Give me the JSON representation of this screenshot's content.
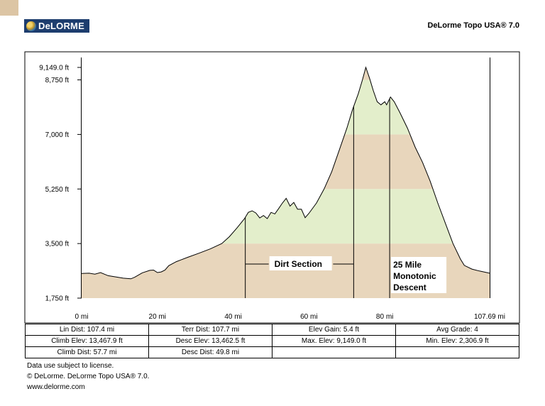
{
  "header": {
    "logo_text": "DeLORME",
    "app_title": "DeLorme Topo USA® 7.0"
  },
  "colors": {
    "corner": "#dcc5a4",
    "band_tan": "#e8d6bc",
    "band_green": "#e3eecb",
    "logo_bg": "#1d3d6e"
  },
  "chart_data": {
    "type": "area",
    "xlim": [
      0,
      107.69
    ],
    "ylim": [
      1750,
      9149
    ],
    "x_ticks": [
      {
        "value": 0,
        "label": "0 mi"
      },
      {
        "value": 20,
        "label": "20 mi"
      },
      {
        "value": 40,
        "label": "40 mi"
      },
      {
        "value": 60,
        "label": "60 mi"
      },
      {
        "value": 80,
        "label": "80 mi"
      },
      {
        "value": 107.69,
        "label": "107.69 mi"
      }
    ],
    "y_ticks": [
      {
        "value": 1750,
        "label": "1,750 ft"
      },
      {
        "value": 3500,
        "label": "3,500 ft"
      },
      {
        "value": 5250,
        "label": "5,250 ft"
      },
      {
        "value": 7000,
        "label": "7,000 ft"
      },
      {
        "value": 8750,
        "label": "8,750 ft"
      },
      {
        "value": 9149,
        "label": "9,149.0 ft"
      }
    ],
    "bands": [
      1750,
      3500,
      5250,
      7000,
      8750,
      9149
    ],
    "profile": [
      [
        0,
        2540
      ],
      [
        2,
        2550
      ],
      [
        3.5,
        2520
      ],
      [
        5,
        2570
      ],
      [
        7,
        2470
      ],
      [
        9,
        2430
      ],
      [
        11,
        2390
      ],
      [
        13,
        2370
      ],
      [
        14,
        2420
      ],
      [
        16,
        2560
      ],
      [
        18,
        2640
      ],
      [
        19,
        2650
      ],
      [
        20,
        2570
      ],
      [
        21,
        2590
      ],
      [
        22,
        2650
      ],
      [
        23,
        2790
      ],
      [
        25,
        2920
      ],
      [
        28,
        3060
      ],
      [
        31,
        3190
      ],
      [
        34,
        3330
      ],
      [
        37,
        3500
      ],
      [
        39,
        3720
      ],
      [
        41,
        4000
      ],
      [
        43,
        4300
      ],
      [
        44,
        4500
      ],
      [
        45,
        4550
      ],
      [
        46,
        4480
      ],
      [
        47,
        4320
      ],
      [
        48,
        4400
      ],
      [
        49,
        4300
      ],
      [
        50,
        4500
      ],
      [
        51,
        4450
      ],
      [
        52,
        4620
      ],
      [
        53,
        4800
      ],
      [
        54,
        4950
      ],
      [
        55,
        4700
      ],
      [
        56,
        4820
      ],
      [
        57,
        4600
      ],
      [
        58,
        4600
      ],
      [
        59,
        4330
      ],
      [
        60,
        4470
      ],
      [
        62,
        4800
      ],
      [
        64,
        5250
      ],
      [
        66,
        5800
      ],
      [
        68,
        6500
      ],
      [
        70,
        7200
      ],
      [
        71.5,
        7800
      ],
      [
        73,
        8300
      ],
      [
        74,
        8700
      ],
      [
        75,
        9149
      ],
      [
        76,
        8800
      ],
      [
        77,
        8400
      ],
      [
        78,
        8050
      ],
      [
        79,
        7950
      ],
      [
        80,
        8050
      ],
      [
        80.5,
        7950
      ],
      [
        81.5,
        8200
      ],
      [
        82.5,
        8050
      ],
      [
        84,
        7700
      ],
      [
        86,
        7200
      ],
      [
        88,
        6600
      ],
      [
        90,
        6100
      ],
      [
        92,
        5500
      ],
      [
        94,
        4800
      ],
      [
        96,
        4150
      ],
      [
        98,
        3500
      ],
      [
        100,
        3000
      ],
      [
        101,
        2800
      ],
      [
        103,
        2680
      ],
      [
        105,
        2620
      ],
      [
        107.69,
        2550
      ]
    ],
    "markers": [
      43.2,
      71.8,
      81.3
    ],
    "annotations": [
      {
        "text": "Dirt Section"
      },
      {
        "text": "25 Mile"
      },
      {
        "text": "Monotonic"
      },
      {
        "text": "Descent"
      }
    ],
    "grid": false
  },
  "stats": [
    [
      "Lin Dist:  107.4 mi",
      "Terr Dist:  107.7 mi",
      "Elev Gain:  5.4 ft",
      "Avg Grade:  4"
    ],
    [
      "Climb Elev:  13,467.9 ft",
      "Desc Elev:  13,462.5 ft",
      "Max. Elev:  9,149.0 ft",
      "Min. Elev:  2,306.9 ft"
    ],
    [
      "Climb Dist:  57.7 mi",
      "Desc Dist:  49.8 mi",
      "",
      ""
    ]
  ],
  "footer": {
    "line1": "Data use subject to license.",
    "line2": "© DeLorme. DeLorme Topo USA® 7.0.",
    "line3": "www.delorme.com"
  }
}
